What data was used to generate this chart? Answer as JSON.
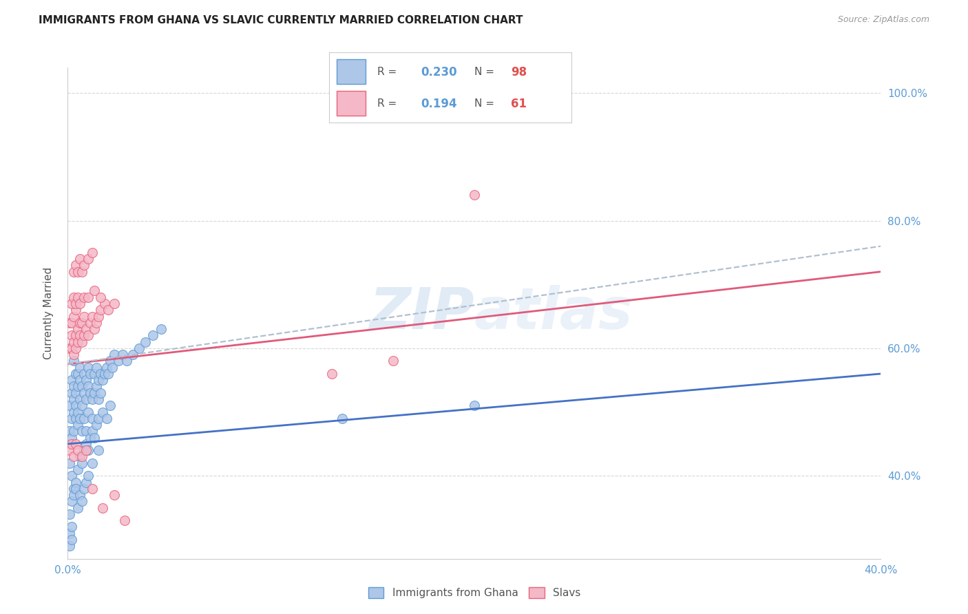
{
  "title": "IMMIGRANTS FROM GHANA VS SLAVIC CURRENTLY MARRIED CORRELATION CHART",
  "source": "Source: ZipAtlas.com",
  "ylabel": "Currently Married",
  "watermark": "ZIPAtlas",
  "legend_blue_R": "0.230",
  "legend_blue_N": "98",
  "legend_pink_R": "0.194",
  "legend_pink_N": "61",
  "blue_label": "Immigrants from Ghana",
  "pink_label": "Slavs",
  "xlim": [
    0.0,
    0.4
  ],
  "ylim": [
    0.27,
    1.04
  ],
  "yticks": [
    0.4,
    0.6,
    0.8,
    1.0
  ],
  "ytick_labels": [
    "40.0%",
    "60.0%",
    "80.0%",
    "100.0%"
  ],
  "xticks": [
    0.0,
    0.1,
    0.2,
    0.3,
    0.4
  ],
  "xtick_labels": [
    "0.0%",
    "",
    "",
    "",
    "40.0%"
  ],
  "blue_color": "#aec6e8",
  "pink_color": "#f4b8c8",
  "blue_edge_color": "#5b9bd5",
  "pink_edge_color": "#e8637a",
  "blue_line_color": "#4472c4",
  "pink_line_color": "#e05a7a",
  "dashed_line_color": "#b0c0d0",
  "axis_color": "#5b9bd5",
  "background": "#ffffff",
  "blue_scatter_x": [
    0.001,
    0.001,
    0.002,
    0.002,
    0.002,
    0.002,
    0.003,
    0.003,
    0.003,
    0.003,
    0.003,
    0.004,
    0.004,
    0.004,
    0.004,
    0.005,
    0.005,
    0.005,
    0.005,
    0.006,
    0.006,
    0.006,
    0.006,
    0.007,
    0.007,
    0.007,
    0.008,
    0.008,
    0.008,
    0.009,
    0.009,
    0.009,
    0.01,
    0.01,
    0.01,
    0.011,
    0.011,
    0.012,
    0.012,
    0.013,
    0.013,
    0.014,
    0.014,
    0.015,
    0.015,
    0.016,
    0.016,
    0.017,
    0.018,
    0.019,
    0.02,
    0.021,
    0.022,
    0.023,
    0.025,
    0.027,
    0.029,
    0.032,
    0.035,
    0.038,
    0.042,
    0.046,
    0.001,
    0.002,
    0.003,
    0.004,
    0.005,
    0.006,
    0.007,
    0.008,
    0.009,
    0.01,
    0.011,
    0.012,
    0.013,
    0.014,
    0.015,
    0.017,
    0.019,
    0.021,
    0.001,
    0.002,
    0.003,
    0.004,
    0.005,
    0.006,
    0.007,
    0.008,
    0.009,
    0.01,
    0.012,
    0.015,
    0.135,
    0.2,
    0.001,
    0.001,
    0.002,
    0.002
  ],
  "blue_scatter_y": [
    0.51,
    0.47,
    0.49,
    0.53,
    0.55,
    0.46,
    0.5,
    0.52,
    0.54,
    0.47,
    0.58,
    0.51,
    0.53,
    0.49,
    0.56,
    0.5,
    0.54,
    0.48,
    0.56,
    0.52,
    0.55,
    0.49,
    0.57,
    0.51,
    0.54,
    0.47,
    0.53,
    0.56,
    0.49,
    0.52,
    0.55,
    0.47,
    0.54,
    0.57,
    0.5,
    0.53,
    0.56,
    0.52,
    0.49,
    0.56,
    0.53,
    0.54,
    0.57,
    0.55,
    0.52,
    0.56,
    0.53,
    0.55,
    0.56,
    0.57,
    0.56,
    0.58,
    0.57,
    0.59,
    0.58,
    0.59,
    0.58,
    0.59,
    0.6,
    0.61,
    0.62,
    0.63,
    0.42,
    0.4,
    0.38,
    0.39,
    0.41,
    0.43,
    0.42,
    0.44,
    0.45,
    0.44,
    0.46,
    0.47,
    0.46,
    0.48,
    0.49,
    0.5,
    0.49,
    0.51,
    0.34,
    0.36,
    0.37,
    0.38,
    0.35,
    0.37,
    0.36,
    0.38,
    0.39,
    0.4,
    0.42,
    0.44,
    0.49,
    0.51,
    0.29,
    0.31,
    0.3,
    0.32
  ],
  "pink_scatter_x": [
    0.001,
    0.001,
    0.002,
    0.002,
    0.002,
    0.003,
    0.003,
    0.003,
    0.004,
    0.004,
    0.004,
    0.005,
    0.005,
    0.006,
    0.006,
    0.007,
    0.007,
    0.008,
    0.008,
    0.009,
    0.01,
    0.011,
    0.012,
    0.013,
    0.014,
    0.015,
    0.016,
    0.018,
    0.02,
    0.023,
    0.003,
    0.004,
    0.005,
    0.006,
    0.007,
    0.008,
    0.01,
    0.012,
    0.002,
    0.003,
    0.004,
    0.005,
    0.006,
    0.008,
    0.01,
    0.013,
    0.016,
    0.13,
    0.001,
    0.002,
    0.003,
    0.004,
    0.005,
    0.007,
    0.009,
    0.012,
    0.017,
    0.023,
    0.2,
    0.16,
    0.028
  ],
  "pink_scatter_y": [
    0.6,
    0.64,
    0.6,
    0.62,
    0.64,
    0.59,
    0.61,
    0.65,
    0.6,
    0.62,
    0.66,
    0.61,
    0.63,
    0.62,
    0.64,
    0.61,
    0.64,
    0.62,
    0.65,
    0.63,
    0.62,
    0.64,
    0.65,
    0.63,
    0.64,
    0.65,
    0.66,
    0.67,
    0.66,
    0.67,
    0.72,
    0.73,
    0.72,
    0.74,
    0.72,
    0.73,
    0.74,
    0.75,
    0.67,
    0.68,
    0.67,
    0.68,
    0.67,
    0.68,
    0.68,
    0.69,
    0.68,
    0.56,
    0.44,
    0.45,
    0.43,
    0.45,
    0.44,
    0.43,
    0.44,
    0.38,
    0.35,
    0.37,
    0.84,
    0.58,
    0.33
  ],
  "blue_trend_x0": 0.0,
  "blue_trend_x1": 0.4,
  "blue_trend_y0": 0.45,
  "blue_trend_y1": 0.56,
  "pink_trend_x0": 0.0,
  "pink_trend_x1": 0.4,
  "pink_trend_y0": 0.575,
  "pink_trend_y1": 0.72,
  "dashed_trend_x0": 0.0,
  "dashed_trend_x1": 0.4,
  "dashed_trend_y0": 0.575,
  "dashed_trend_y1": 0.76
}
